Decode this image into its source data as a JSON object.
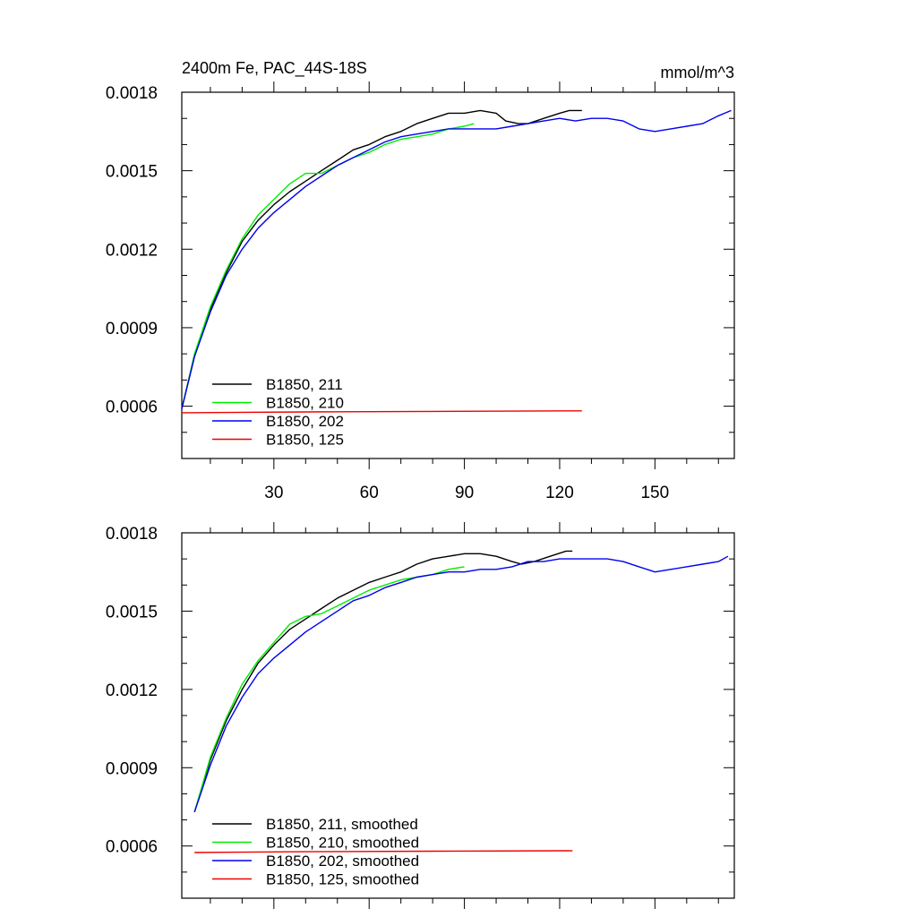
{
  "figure": {
    "title_left": "2400m Fe, PAC_44S-18S",
    "title_right": "mmol/m^3"
  },
  "chart_data": [
    {
      "type": "line",
      "title": "2400m Fe, PAC_44S-18S",
      "units": "mmol/m^3",
      "xlim": [
        1,
        175
      ],
      "ylim": [
        0.0004,
        0.0018
      ],
      "x_ticks": [
        30,
        60,
        90,
        120,
        150
      ],
      "x_tick_labels": [
        "30",
        "60",
        "90",
        "120",
        "150"
      ],
      "y_ticks": [
        0.0006,
        0.0009,
        0.0012,
        0.0015,
        0.0018
      ],
      "y_tick_labels": [
        "0.0006",
        "0.0009",
        "0.0012",
        "0.0015",
        "0.0018"
      ],
      "grid": false,
      "legend_position": "bottom-left",
      "series": [
        {
          "name": "B1850, 211",
          "color": "#000000",
          "x": [
            1,
            5,
            10,
            15,
            20,
            25,
            30,
            35,
            40,
            45,
            50,
            55,
            60,
            65,
            70,
            75,
            80,
            85,
            90,
            95,
            100,
            103,
            107,
            110,
            115,
            120,
            123,
            127
          ],
          "y": [
            0.00059,
            0.00079,
            0.00097,
            0.00111,
            0.00123,
            0.00131,
            0.00137,
            0.00142,
            0.00146,
            0.0015,
            0.00154,
            0.00158,
            0.0016,
            0.00163,
            0.00165,
            0.00168,
            0.0017,
            0.00172,
            0.00172,
            0.00173,
            0.00172,
            0.00169,
            0.00168,
            0.00168,
            0.0017,
            0.00172,
            0.00173,
            0.00173
          ]
        },
        {
          "name": "B1850, 210",
          "color": "#00ee00",
          "x": [
            1,
            5,
            10,
            15,
            20,
            25,
            30,
            35,
            40,
            45,
            50,
            55,
            60,
            65,
            70,
            75,
            80,
            85,
            90,
            93
          ],
          "y": [
            0.00059,
            0.0008,
            0.00098,
            0.00112,
            0.00124,
            0.00133,
            0.00139,
            0.00145,
            0.00149,
            0.00149,
            0.00152,
            0.00155,
            0.00157,
            0.0016,
            0.00162,
            0.00163,
            0.00164,
            0.00166,
            0.00167,
            0.00168
          ]
        },
        {
          "name": "B1850, 202",
          "color": "#0000ee",
          "x": [
            1,
            5,
            10,
            15,
            20,
            25,
            30,
            35,
            40,
            45,
            50,
            55,
            60,
            65,
            70,
            75,
            80,
            85,
            90,
            95,
            100,
            105,
            110,
            115,
            120,
            125,
            130,
            135,
            140,
            145,
            150,
            155,
            160,
            165,
            170,
            174
          ],
          "y": [
            0.00059,
            0.00079,
            0.00096,
            0.0011,
            0.0012,
            0.00128,
            0.00134,
            0.00139,
            0.00144,
            0.00148,
            0.00152,
            0.00155,
            0.00158,
            0.00161,
            0.00163,
            0.00164,
            0.00165,
            0.00166,
            0.00166,
            0.00166,
            0.00166,
            0.00167,
            0.00168,
            0.00169,
            0.0017,
            0.00169,
            0.0017,
            0.0017,
            0.00169,
            0.00166,
            0.00165,
            0.00166,
            0.00167,
            0.00168,
            0.00171,
            0.00173
          ]
        },
        {
          "name": "B1850, 125",
          "color": "#ee0000",
          "x": [
            1,
            40,
            80,
            127
          ],
          "y": [
            0.000575,
            0.000578,
            0.00058,
            0.000582
          ]
        }
      ]
    },
    {
      "type": "line",
      "xlim": [
        1,
        175
      ],
      "ylim": [
        0.0004,
        0.0018
      ],
      "x_ticks": [
        30,
        60,
        90,
        120,
        150
      ],
      "y_ticks": [
        0.0006,
        0.0009,
        0.0012,
        0.0015,
        0.0018
      ],
      "y_tick_labels": [
        "0.0006",
        "0.0009",
        "0.0012",
        "0.0015",
        "0.0018"
      ],
      "grid": false,
      "legend_position": "bottom-left",
      "series": [
        {
          "name": "B1850, 211, smoothed",
          "color": "#000000",
          "x": [
            5,
            10,
            15,
            20,
            25,
            30,
            35,
            40,
            45,
            50,
            55,
            60,
            65,
            70,
            75,
            80,
            85,
            90,
            95,
            100,
            105,
            108,
            112,
            117,
            122,
            124
          ],
          "y": [
            0.00073,
            0.00093,
            0.00108,
            0.0012,
            0.0013,
            0.00137,
            0.00143,
            0.00147,
            0.00151,
            0.00155,
            0.00158,
            0.00161,
            0.00163,
            0.00165,
            0.00168,
            0.0017,
            0.00171,
            0.00172,
            0.00172,
            0.00171,
            0.00169,
            0.00168,
            0.00169,
            0.00171,
            0.00173,
            0.00173
          ]
        },
        {
          "name": "B1850, 210, smoothed",
          "color": "#00ee00",
          "x": [
            5,
            10,
            15,
            20,
            25,
            30,
            35,
            40,
            45,
            50,
            55,
            60,
            65,
            70,
            75,
            80,
            85,
            90
          ],
          "y": [
            0.00073,
            0.00094,
            0.00109,
            0.00122,
            0.00131,
            0.00138,
            0.00145,
            0.00148,
            0.00149,
            0.00152,
            0.00155,
            0.00158,
            0.0016,
            0.00162,
            0.00163,
            0.00164,
            0.00166,
            0.00167
          ]
        },
        {
          "name": "B1850, 202, smoothed",
          "color": "#0000ee",
          "x": [
            5,
            10,
            15,
            20,
            25,
            30,
            35,
            40,
            45,
            50,
            55,
            60,
            65,
            70,
            75,
            80,
            85,
            90,
            95,
            100,
            105,
            110,
            115,
            120,
            125,
            130,
            135,
            140,
            145,
            150,
            155,
            160,
            165,
            170,
            173
          ],
          "y": [
            0.00073,
            0.00091,
            0.00106,
            0.00117,
            0.00126,
            0.00132,
            0.00137,
            0.00142,
            0.00146,
            0.0015,
            0.00154,
            0.00156,
            0.00159,
            0.00161,
            0.00163,
            0.00164,
            0.00165,
            0.00165,
            0.00166,
            0.00166,
            0.00167,
            0.00169,
            0.00169,
            0.0017,
            0.0017,
            0.0017,
            0.0017,
            0.00169,
            0.00167,
            0.00165,
            0.00166,
            0.00167,
            0.00168,
            0.00169,
            0.00171
          ]
        },
        {
          "name": "B1850, 125, smoothed",
          "color": "#ee0000",
          "x": [
            5,
            40,
            80,
            124
          ],
          "y": [
            0.000575,
            0.000578,
            0.00058,
            0.000582
          ]
        }
      ]
    }
  ]
}
